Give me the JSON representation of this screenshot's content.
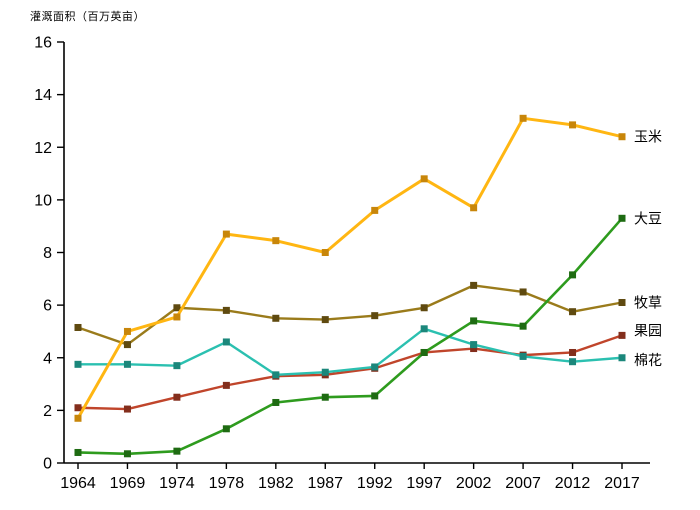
{
  "chart_data": {
    "type": "line",
    "title": "灌溉面积（百万英亩）",
    "xlabel": "",
    "ylabel": "灌溉面积（百万英亩）",
    "categories": [
      "1964",
      "1969",
      "1974",
      "1978",
      "1982",
      "1987",
      "1992",
      "1997",
      "2002",
      "2007",
      "2012",
      "2017"
    ],
    "ylim": [
      0,
      16
    ],
    "ytick_step": 2,
    "grid": false,
    "legend_position": "right-end-labels",
    "axis_color": "#000000",
    "series": [
      {
        "name": "果园",
        "color": "#C0452B",
        "marker_color": "#832E1C",
        "width": 2.4,
        "label_dy": -5,
        "values": [
          2.1,
          2.05,
          2.5,
          2.95,
          3.3,
          3.35,
          3.6,
          4.2,
          4.35,
          4.1,
          4.2,
          4.85
        ]
      },
      {
        "name": "棉花",
        "color": "#2BC0B0",
        "marker_color": "#1B877B",
        "width": 2.4,
        "label_dy": 2,
        "values": [
          3.75,
          3.75,
          3.7,
          4.6,
          3.35,
          3.45,
          3.65,
          5.1,
          4.5,
          4.05,
          3.85,
          4.0
        ]
      },
      {
        "name": "牧草",
        "color": "#9A7B1B",
        "marker_color": "#5F4A10",
        "width": 2.4,
        "label_dy": 0,
        "values": [
          5.15,
          4.5,
          5.9,
          5.8,
          5.5,
          5.45,
          5.6,
          5.9,
          6.75,
          6.5,
          5.75,
          6.1
        ]
      },
      {
        "name": "大豆",
        "color": "#2E9B1E",
        "marker_color": "#1E6B12",
        "width": 2.6,
        "label_dy": 0,
        "values": [
          0.4,
          0.35,
          0.45,
          1.3,
          2.3,
          2.5,
          2.55,
          4.2,
          5.4,
          5.2,
          7.15,
          9.3
        ]
      },
      {
        "name": "玉米",
        "color": "#FFB612",
        "marker_color": "#C8860A",
        "width": 3.0,
        "label_dy": 0,
        "values": [
          1.7,
          5.0,
          5.55,
          8.7,
          8.45,
          8.0,
          9.6,
          10.8,
          9.7,
          13.1,
          12.85,
          12.4
        ]
      }
    ]
  }
}
